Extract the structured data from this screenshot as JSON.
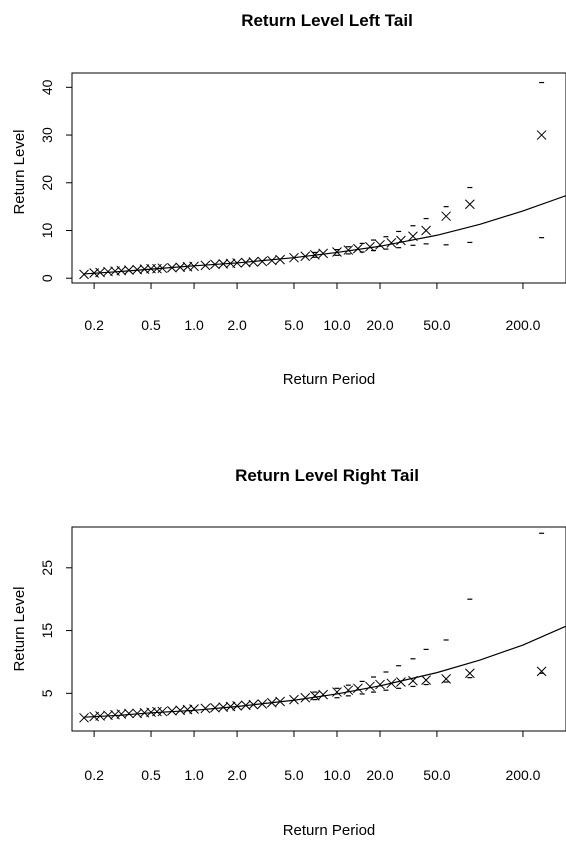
{
  "chart_data": [
    {
      "type": "scatter",
      "title": "Return Level Left Tail",
      "xlabel": "Return Period",
      "ylabel": "Return Level",
      "x_scale": "log",
      "x_ticks": [
        "0.2",
        "0.5",
        "1.0",
        "2.0",
        "5.0",
        "10.0",
        "20.0",
        "50.0",
        "200.0"
      ],
      "y_ticks": [
        "0",
        "10",
        "20",
        "30",
        "40"
      ],
      "xlim": [
        0.14,
        400
      ],
      "ylim": [
        -1,
        43
      ],
      "grid": false,
      "fitted_curve": {
        "x": [
          0.17,
          0.3,
          0.5,
          1,
          2,
          5,
          10,
          20,
          50,
          100,
          200,
          400
        ],
        "y": [
          0.9,
          1.4,
          1.9,
          2.6,
          3.2,
          4.3,
          5.4,
          6.7,
          9.0,
          11.3,
          14.1,
          17.3
        ]
      },
      "empirical_points": {
        "x": [
          0.17,
          0.2,
          0.22,
          0.25,
          0.28,
          0.31,
          0.35,
          0.4,
          0.45,
          0.5,
          0.55,
          0.6,
          0.7,
          0.8,
          0.9,
          1.0,
          1.2,
          1.4,
          1.6,
          1.8,
          2.0,
          2.3,
          2.6,
          3.0,
          3.5,
          4.0,
          5.0,
          6.0,
          7.0,
          8.0,
          10.0,
          12.0,
          14.0,
          17.0,
          20.0,
          24.0,
          28.0,
          34.0,
          42.0,
          58.0,
          85.0,
          270.0
        ],
        "y": [
          0.8,
          1.1,
          1.2,
          1.4,
          1.5,
          1.6,
          1.7,
          1.8,
          1.9,
          2.0,
          2.0,
          2.1,
          2.2,
          2.3,
          2.4,
          2.5,
          2.7,
          2.9,
          3.0,
          3.1,
          3.2,
          3.3,
          3.4,
          3.5,
          3.7,
          3.9,
          4.3,
          4.6,
          4.9,
          5.2,
          5.5,
          5.9,
          6.2,
          6.6,
          7.0,
          7.4,
          7.9,
          8.8,
          10.0,
          13.0,
          15.5,
          30.0
        ]
      },
      "confidence_upper": {
        "x": [
          7.0,
          10.0,
          12.0,
          15.0,
          18.0,
          22.0,
          27.0,
          34.0,
          42.0,
          58.0,
          85.0,
          270.0
        ],
        "y": [
          5.4,
          6.0,
          6.6,
          7.3,
          8.0,
          8.7,
          9.8,
          11.0,
          12.5,
          15.0,
          19.0,
          41.0
        ]
      },
      "confidence_lower": {
        "x": [
          7.0,
          10.0,
          12.0,
          15.0,
          18.0,
          22.0,
          27.0,
          34.0,
          42.0,
          58.0,
          85.0,
          270.0
        ],
        "y": [
          4.4,
          4.8,
          5.1,
          5.5,
          5.8,
          6.1,
          6.4,
          6.9,
          7.2,
          7.0,
          7.5,
          8.5
        ]
      }
    },
    {
      "type": "scatter",
      "title": "Return Level Right Tail",
      "xlabel": "Return Period",
      "ylabel": "Return Level",
      "x_scale": "log",
      "x_ticks": [
        "0.2",
        "0.5",
        "1.0",
        "2.0",
        "5.0",
        "10.0",
        "20.0",
        "50.0",
        "200.0"
      ],
      "y_ticks": [
        "5",
        "15",
        "25"
      ],
      "xlim": [
        0.14,
        400
      ],
      "ylim": [
        -1,
        31.5
      ],
      "grid": false,
      "fitted_curve": {
        "x": [
          0.17,
          0.3,
          0.5,
          1,
          2,
          5,
          10,
          20,
          50,
          100,
          200,
          400
        ],
        "y": [
          1.2,
          1.5,
          1.9,
          2.3,
          2.9,
          3.9,
          4.9,
          6.2,
          8.3,
          10.3,
          12.7,
          15.7
        ]
      },
      "empirical_points": {
        "x": [
          0.17,
          0.2,
          0.22,
          0.25,
          0.28,
          0.31,
          0.35,
          0.4,
          0.45,
          0.5,
          0.55,
          0.6,
          0.7,
          0.8,
          0.9,
          1.0,
          1.2,
          1.4,
          1.6,
          1.8,
          2.0,
          2.3,
          2.6,
          3.0,
          3.5,
          4.0,
          5.0,
          6.0,
          7.0,
          8.0,
          10.0,
          12.0,
          14.0,
          17.0,
          20.0,
          24.0,
          28.0,
          34.0,
          42.0,
          58.0,
          85.0,
          270.0
        ],
        "y": [
          1.1,
          1.3,
          1.4,
          1.5,
          1.6,
          1.7,
          1.8,
          1.8,
          1.9,
          2.0,
          2.1,
          2.1,
          2.2,
          2.3,
          2.4,
          2.5,
          2.6,
          2.7,
          2.8,
          2.9,
          3.0,
          3.1,
          3.2,
          3.3,
          3.5,
          3.7,
          4.0,
          4.3,
          4.6,
          4.8,
          5.2,
          5.5,
          5.8,
          6.1,
          6.4,
          6.6,
          6.8,
          7.0,
          7.1,
          7.3,
          8.2,
          8.5
        ]
      },
      "confidence_upper": {
        "x": [
          7.0,
          10.0,
          12.0,
          15.0,
          18.0,
          22.0,
          27.0,
          34.0,
          42.0,
          58.0,
          85.0,
          270.0
        ],
        "y": [
          5.2,
          5.8,
          6.3,
          6.9,
          7.6,
          8.4,
          9.4,
          10.5,
          12.0,
          13.5,
          20.0,
          30.5
        ]
      },
      "confidence_lower": {
        "x": [
          7.0,
          10.0,
          12.0,
          15.0,
          18.0,
          22.0,
          27.0,
          34.0,
          42.0,
          58.0,
          85.0,
          270.0
        ],
        "y": [
          4.0,
          4.3,
          4.6,
          4.9,
          5.2,
          5.5,
          5.8,
          6.1,
          6.4,
          6.8,
          7.5,
          8.2
        ]
      }
    }
  ]
}
